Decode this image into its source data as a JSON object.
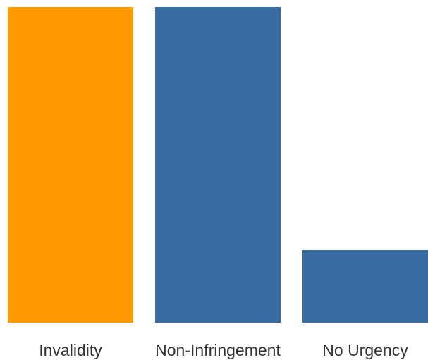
{
  "chart_data": {
    "type": "bar",
    "categories": [
      "Invalidity",
      "Non-Infringement",
      "No Urgency"
    ],
    "values": [
      100,
      100,
      23
    ],
    "ylim": [
      0,
      100
    ],
    "bar_colors": [
      "#FF9900",
      "#3A6CA4",
      "#3A6CA4"
    ],
    "title": "",
    "xlabel": "",
    "ylabel": "",
    "grid": false,
    "legend": "none"
  }
}
